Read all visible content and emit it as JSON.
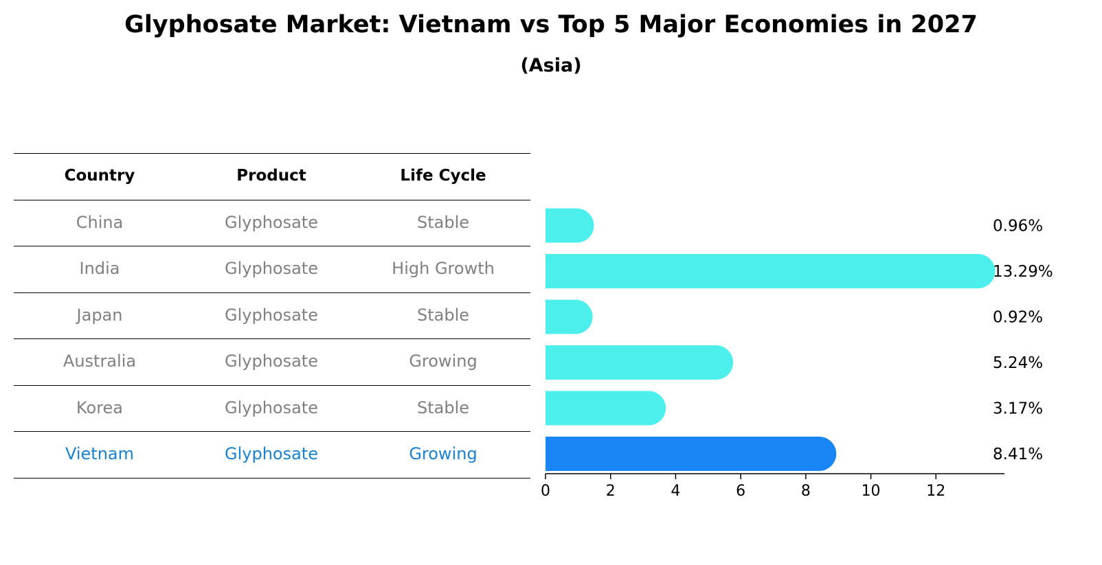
{
  "title": "Glyphosate Market: Vietnam vs Top 5 Major Economies in 2027",
  "subtitle": "(Asia)",
  "table": {
    "headers": [
      "Country",
      "Product",
      "Life Cycle"
    ],
    "rows": [
      [
        "China",
        "Glyphosate",
        "Stable"
      ],
      [
        "India",
        "Glyphosate",
        "High Growth"
      ],
      [
        "Japan",
        "Glyphosate",
        "Stable"
      ],
      [
        "Australia",
        "Glyphosate",
        "Growing"
      ],
      [
        "Korea",
        "Glyphosate",
        "Stable"
      ],
      [
        "Vietnam",
        "Glyphosate",
        "Growing"
      ]
    ],
    "highlight_row": 5
  },
  "chart_data": {
    "type": "bar",
    "orientation": "horizontal",
    "categories": [
      "China",
      "India",
      "Japan",
      "Australia",
      "Korea",
      "Vietnam"
    ],
    "values": [
      0.96,
      13.29,
      0.92,
      5.24,
      3.17,
      8.41
    ],
    "value_labels": [
      "0.96%",
      "13.29%",
      "0.92%",
      "5.24%",
      "3.17%",
      "8.41%"
    ],
    "xlim": [
      0,
      14
    ],
    "xticks": [
      0,
      2,
      4,
      6,
      8,
      10,
      12
    ],
    "highlight_index": 5,
    "colors": {
      "default": "#4cefeb",
      "highlight": "#1a85f5"
    }
  }
}
